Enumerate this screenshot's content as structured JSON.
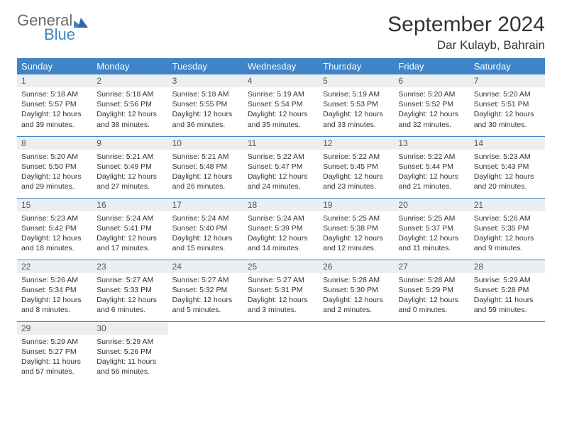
{
  "logo": {
    "word1": "General",
    "word2": "Blue"
  },
  "title": "September 2024",
  "location": "Dar Kulayb, Bahrain",
  "colors": {
    "header_bg": "#3e84c6",
    "header_text": "#ffffff",
    "daynum_bg": "#eceff1",
    "rule": "#3e84c6",
    "logo_gray": "#6a6a6a",
    "logo_blue": "#3e84c6"
  },
  "daysOfWeek": [
    "Sunday",
    "Monday",
    "Tuesday",
    "Wednesday",
    "Thursday",
    "Friday",
    "Saturday"
  ],
  "weeks": [
    [
      {
        "n": "1",
        "sunrise": "Sunrise: 5:18 AM",
        "sunset": "Sunset: 5:57 PM",
        "day1": "Daylight: 12 hours",
        "day2": "and 39 minutes."
      },
      {
        "n": "2",
        "sunrise": "Sunrise: 5:18 AM",
        "sunset": "Sunset: 5:56 PM",
        "day1": "Daylight: 12 hours",
        "day2": "and 38 minutes."
      },
      {
        "n": "3",
        "sunrise": "Sunrise: 5:18 AM",
        "sunset": "Sunset: 5:55 PM",
        "day1": "Daylight: 12 hours",
        "day2": "and 36 minutes."
      },
      {
        "n": "4",
        "sunrise": "Sunrise: 5:19 AM",
        "sunset": "Sunset: 5:54 PM",
        "day1": "Daylight: 12 hours",
        "day2": "and 35 minutes."
      },
      {
        "n": "5",
        "sunrise": "Sunrise: 5:19 AM",
        "sunset": "Sunset: 5:53 PM",
        "day1": "Daylight: 12 hours",
        "day2": "and 33 minutes."
      },
      {
        "n": "6",
        "sunrise": "Sunrise: 5:20 AM",
        "sunset": "Sunset: 5:52 PM",
        "day1": "Daylight: 12 hours",
        "day2": "and 32 minutes."
      },
      {
        "n": "7",
        "sunrise": "Sunrise: 5:20 AM",
        "sunset": "Sunset: 5:51 PM",
        "day1": "Daylight: 12 hours",
        "day2": "and 30 minutes."
      }
    ],
    [
      {
        "n": "8",
        "sunrise": "Sunrise: 5:20 AM",
        "sunset": "Sunset: 5:50 PM",
        "day1": "Daylight: 12 hours",
        "day2": "and 29 minutes."
      },
      {
        "n": "9",
        "sunrise": "Sunrise: 5:21 AM",
        "sunset": "Sunset: 5:49 PM",
        "day1": "Daylight: 12 hours",
        "day2": "and 27 minutes."
      },
      {
        "n": "10",
        "sunrise": "Sunrise: 5:21 AM",
        "sunset": "Sunset: 5:48 PM",
        "day1": "Daylight: 12 hours",
        "day2": "and 26 minutes."
      },
      {
        "n": "11",
        "sunrise": "Sunrise: 5:22 AM",
        "sunset": "Sunset: 5:47 PM",
        "day1": "Daylight: 12 hours",
        "day2": "and 24 minutes."
      },
      {
        "n": "12",
        "sunrise": "Sunrise: 5:22 AM",
        "sunset": "Sunset: 5:45 PM",
        "day1": "Daylight: 12 hours",
        "day2": "and 23 minutes."
      },
      {
        "n": "13",
        "sunrise": "Sunrise: 5:22 AM",
        "sunset": "Sunset: 5:44 PM",
        "day1": "Daylight: 12 hours",
        "day2": "and 21 minutes."
      },
      {
        "n": "14",
        "sunrise": "Sunrise: 5:23 AM",
        "sunset": "Sunset: 5:43 PM",
        "day1": "Daylight: 12 hours",
        "day2": "and 20 minutes."
      }
    ],
    [
      {
        "n": "15",
        "sunrise": "Sunrise: 5:23 AM",
        "sunset": "Sunset: 5:42 PM",
        "day1": "Daylight: 12 hours",
        "day2": "and 18 minutes."
      },
      {
        "n": "16",
        "sunrise": "Sunrise: 5:24 AM",
        "sunset": "Sunset: 5:41 PM",
        "day1": "Daylight: 12 hours",
        "day2": "and 17 minutes."
      },
      {
        "n": "17",
        "sunrise": "Sunrise: 5:24 AM",
        "sunset": "Sunset: 5:40 PM",
        "day1": "Daylight: 12 hours",
        "day2": "and 15 minutes."
      },
      {
        "n": "18",
        "sunrise": "Sunrise: 5:24 AM",
        "sunset": "Sunset: 5:39 PM",
        "day1": "Daylight: 12 hours",
        "day2": "and 14 minutes."
      },
      {
        "n": "19",
        "sunrise": "Sunrise: 5:25 AM",
        "sunset": "Sunset: 5:38 PM",
        "day1": "Daylight: 12 hours",
        "day2": "and 12 minutes."
      },
      {
        "n": "20",
        "sunrise": "Sunrise: 5:25 AM",
        "sunset": "Sunset: 5:37 PM",
        "day1": "Daylight: 12 hours",
        "day2": "and 11 minutes."
      },
      {
        "n": "21",
        "sunrise": "Sunrise: 5:26 AM",
        "sunset": "Sunset: 5:35 PM",
        "day1": "Daylight: 12 hours",
        "day2": "and 9 minutes."
      }
    ],
    [
      {
        "n": "22",
        "sunrise": "Sunrise: 5:26 AM",
        "sunset": "Sunset: 5:34 PM",
        "day1": "Daylight: 12 hours",
        "day2": "and 8 minutes."
      },
      {
        "n": "23",
        "sunrise": "Sunrise: 5:27 AM",
        "sunset": "Sunset: 5:33 PM",
        "day1": "Daylight: 12 hours",
        "day2": "and 6 minutes."
      },
      {
        "n": "24",
        "sunrise": "Sunrise: 5:27 AM",
        "sunset": "Sunset: 5:32 PM",
        "day1": "Daylight: 12 hours",
        "day2": "and 5 minutes."
      },
      {
        "n": "25",
        "sunrise": "Sunrise: 5:27 AM",
        "sunset": "Sunset: 5:31 PM",
        "day1": "Daylight: 12 hours",
        "day2": "and 3 minutes."
      },
      {
        "n": "26",
        "sunrise": "Sunrise: 5:28 AM",
        "sunset": "Sunset: 5:30 PM",
        "day1": "Daylight: 12 hours",
        "day2": "and 2 minutes."
      },
      {
        "n": "27",
        "sunrise": "Sunrise: 5:28 AM",
        "sunset": "Sunset: 5:29 PM",
        "day1": "Daylight: 12 hours",
        "day2": "and 0 minutes."
      },
      {
        "n": "28",
        "sunrise": "Sunrise: 5:29 AM",
        "sunset": "Sunset: 5:28 PM",
        "day1": "Daylight: 11 hours",
        "day2": "and 59 minutes."
      }
    ],
    [
      {
        "n": "29",
        "sunrise": "Sunrise: 5:29 AM",
        "sunset": "Sunset: 5:27 PM",
        "day1": "Daylight: 11 hours",
        "day2": "and 57 minutes."
      },
      {
        "n": "30",
        "sunrise": "Sunrise: 5:29 AM",
        "sunset": "Sunset: 5:26 PM",
        "day1": "Daylight: 11 hours",
        "day2": "and 56 minutes."
      },
      null,
      null,
      null,
      null,
      null
    ]
  ]
}
